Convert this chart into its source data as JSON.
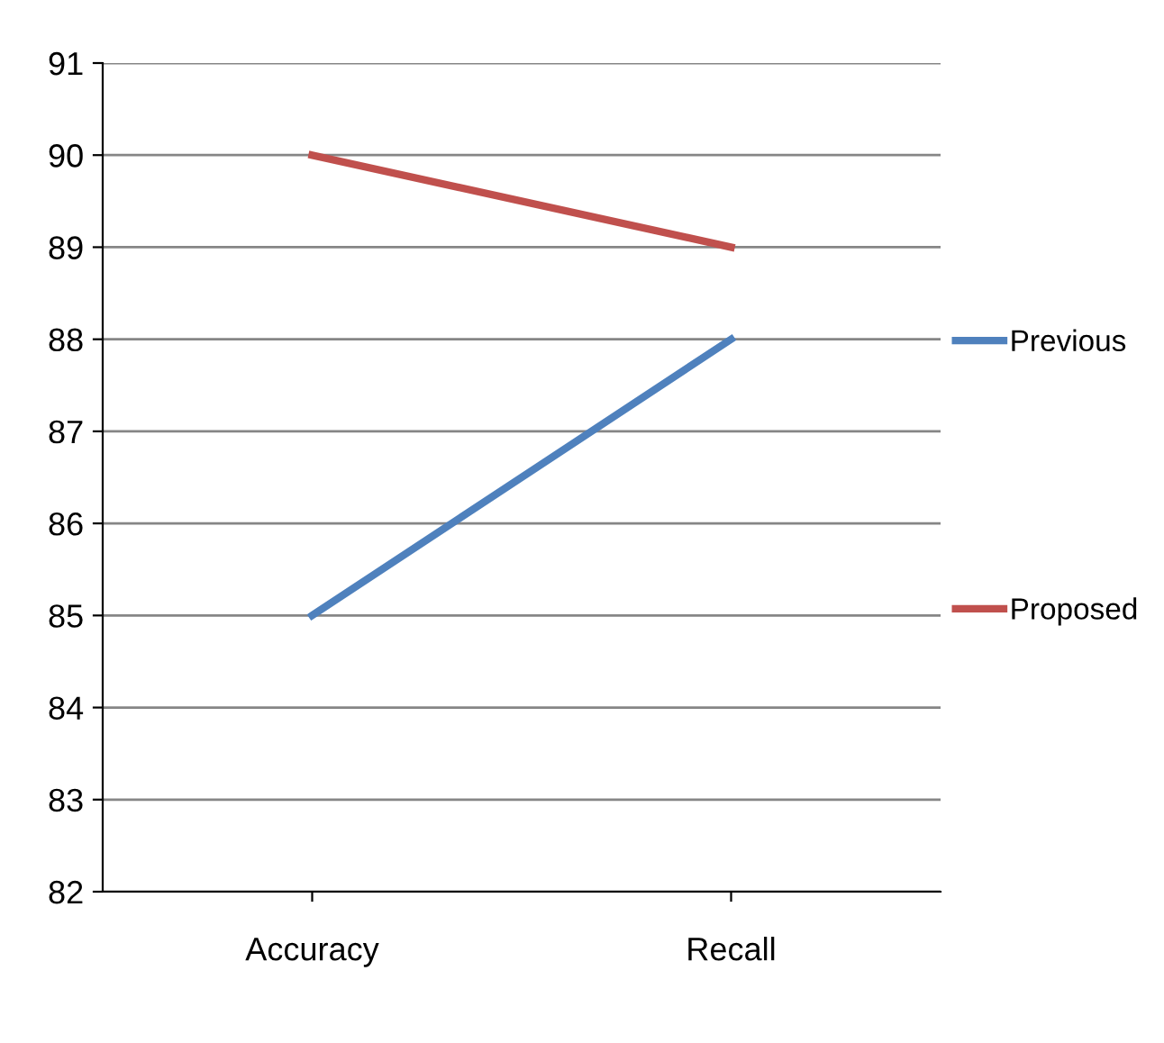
{
  "chart_data": {
    "type": "line",
    "categories": [
      "Accuracy",
      "Recall"
    ],
    "series": [
      {
        "name": "Previous",
        "color": "#4f81bd",
        "values": [
          85,
          88
        ]
      },
      {
        "name": "Proposed",
        "color": "#c0504d",
        "values": [
          90,
          89
        ]
      }
    ],
    "ylim": [
      82,
      91
    ],
    "yticks": [
      82,
      83,
      84,
      85,
      86,
      87,
      88,
      89,
      90,
      91
    ],
    "grid": "y",
    "legend": "right",
    "marker": "none",
    "line_style": "solid"
  }
}
